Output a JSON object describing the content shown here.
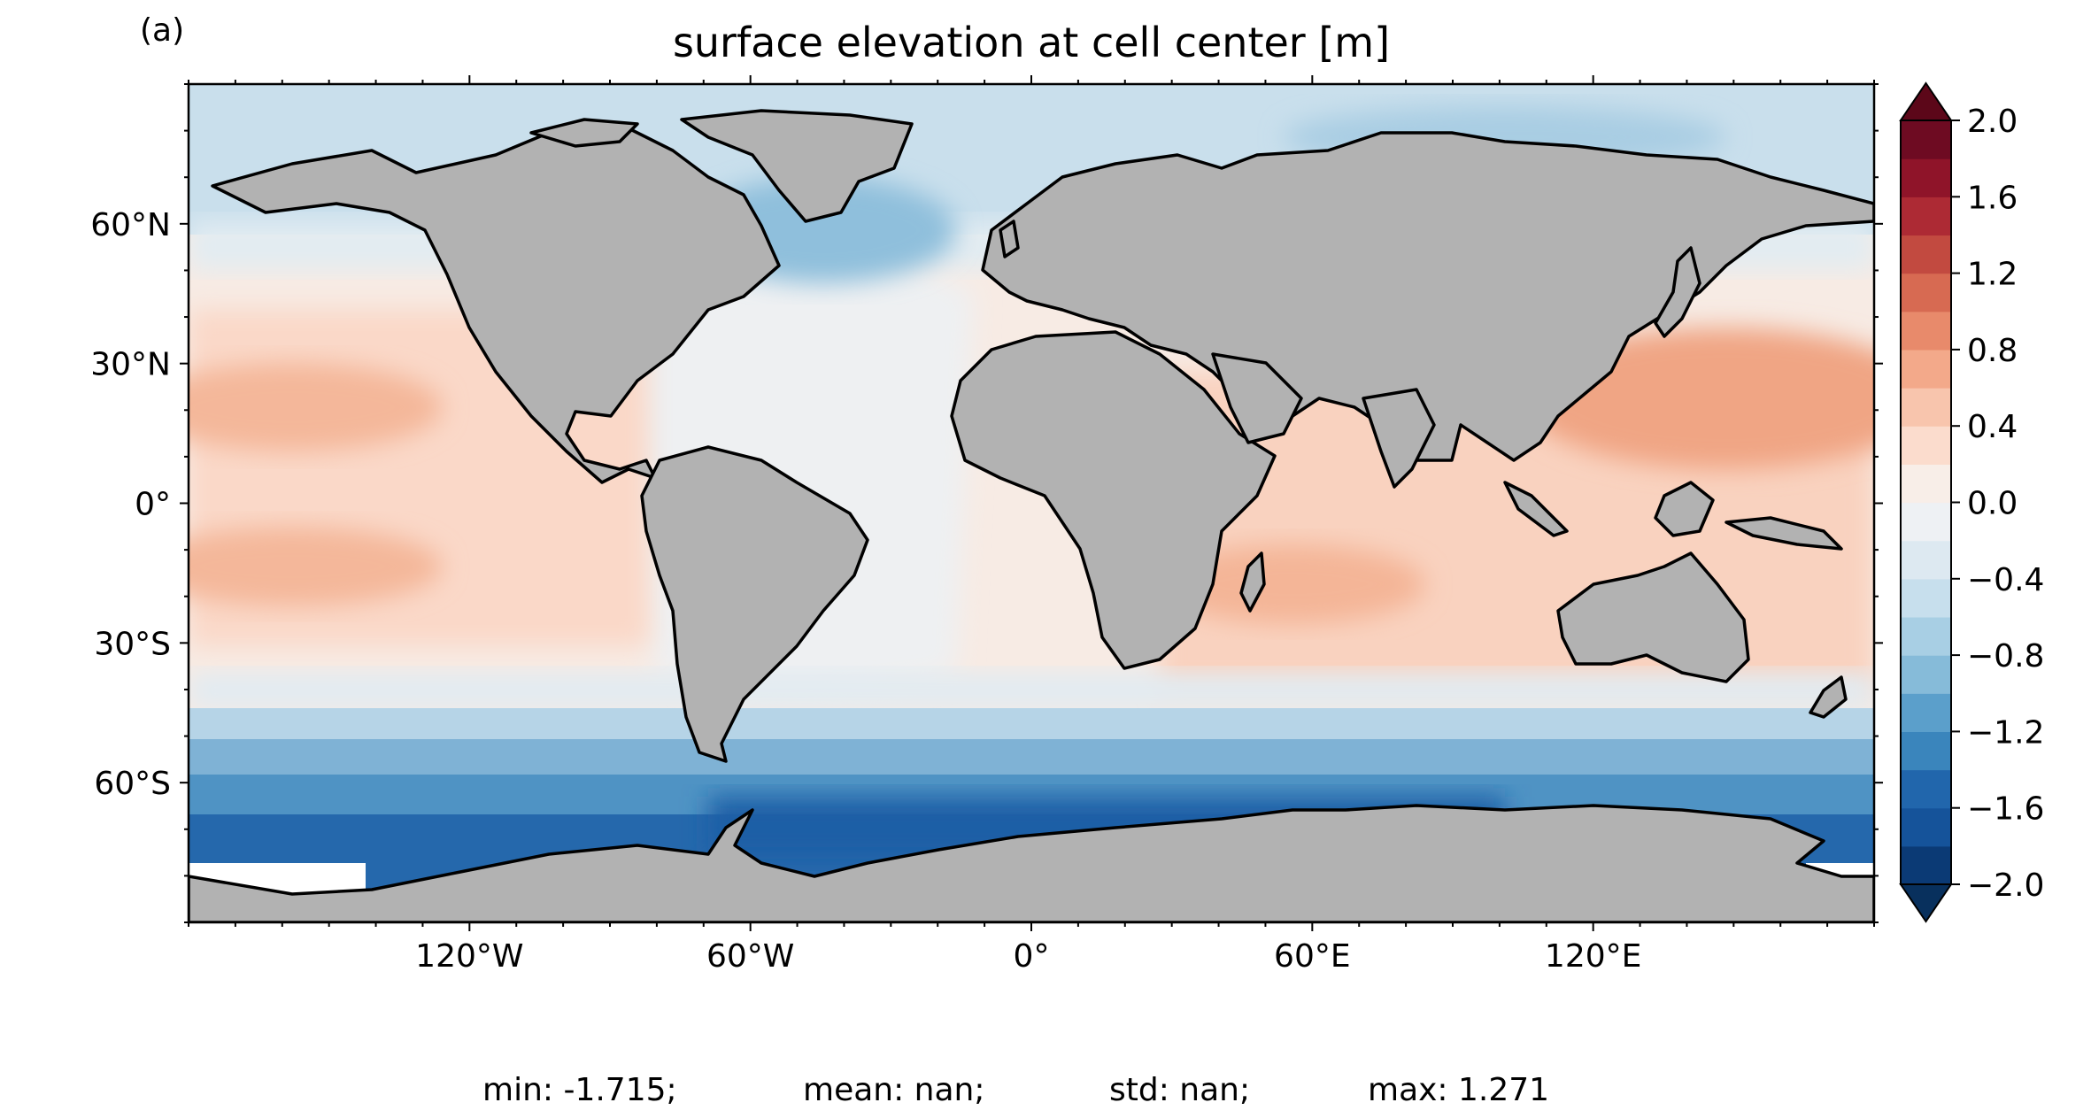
{
  "panel_label": "(a)",
  "title": "surface elevation at cell center [m]",
  "map": {
    "projection": "PlateCarree",
    "land_color": "#b2b2b2",
    "coastline_color": "#000000",
    "lon_range": [
      -180,
      180
    ],
    "lat_range": [
      -90,
      90
    ],
    "lon_ticks": [
      {
        "value": -120,
        "label": "120°W"
      },
      {
        "value": -60,
        "label": "60°W"
      },
      {
        "value": 0,
        "label": "0°"
      },
      {
        "value": 60,
        "label": "60°E"
      },
      {
        "value": 120,
        "label": "120°E"
      }
    ],
    "lat_ticks": [
      {
        "value": 60,
        "label": "60°N"
      },
      {
        "value": 30,
        "label": "30°N"
      },
      {
        "value": 0,
        "label": "0°"
      },
      {
        "value": -30,
        "label": "30°S"
      },
      {
        "value": -60,
        "label": "60°S"
      }
    ]
  },
  "colorbar": {
    "cmap": "RdBu_r",
    "extend": "both",
    "range": [
      -2.0,
      2.0
    ],
    "levels": [
      -2.0,
      -1.8,
      -1.6,
      -1.4,
      -1.2,
      -1.0,
      -0.8,
      -0.6,
      -0.4,
      -0.2,
      0.0,
      0.2,
      0.4,
      0.6,
      0.8,
      1.0,
      1.2,
      1.4,
      1.6,
      1.8,
      2.0
    ],
    "tick_labels": [
      "2.0",
      "1.6",
      "1.2",
      "0.8",
      "0.4",
      "0.0",
      "−0.4",
      "−0.8",
      "−1.2",
      "−1.6",
      "−2.0"
    ],
    "tick_values": [
      2.0,
      1.6,
      1.2,
      0.8,
      0.4,
      0.0,
      -0.4,
      -0.8,
      -1.2,
      -1.6,
      -2.0
    ],
    "colors": [
      "#0b3a75",
      "#15539a",
      "#2166ac",
      "#3a85bc",
      "#5b9fcb",
      "#86bbd9",
      "#a8cfe4",
      "#c7dfed",
      "#dde9f1",
      "#eef1f4",
      "#f8eee8",
      "#fbdccd",
      "#f8c5ad",
      "#f3a98a",
      "#e88a6b",
      "#d76a52",
      "#c24a40",
      "#ad2a34",
      "#8f1429",
      "#6e0b22"
    ],
    "extend_low_color": "#08305d",
    "extend_high_color": "#5c0719"
  },
  "stats": {
    "min": "min: -1.715;",
    "mean": "mean: nan;",
    "std": "std: nan;",
    "max": "max: 1.271"
  }
}
